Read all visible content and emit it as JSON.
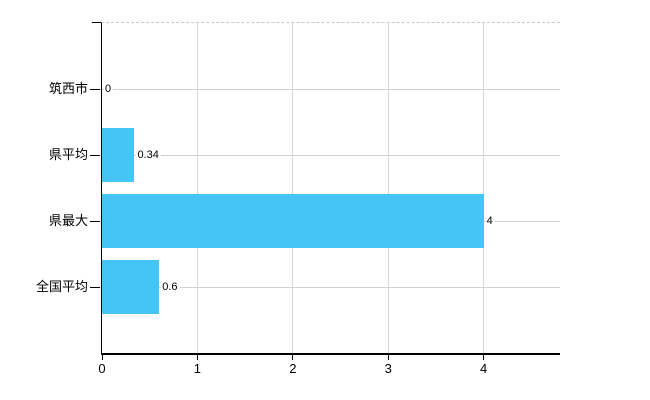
{
  "chart_data": {
    "type": "bar",
    "orientation": "horizontal",
    "categories": [
      "筑西市",
      "県平均",
      "県最大",
      "全国平均"
    ],
    "values": [
      0,
      0.34,
      4,
      0.6
    ],
    "value_labels": [
      "0",
      "0.34",
      "4",
      "0.6"
    ],
    "x_ticks": [
      0,
      1,
      2,
      3,
      4
    ],
    "x_tick_labels": [
      "0",
      "1",
      "2",
      "3",
      "4"
    ],
    "xlim": [
      0,
      4.8
    ],
    "grid": true,
    "legend": false,
    "bar_color": "#44C5F5"
  },
  "colors": {
    "bar": "#44C5F5",
    "horizontal_grid": "#ccd3ca",
    "vertical_grid": "#d7d7da",
    "axis": "#000000",
    "plot_top_border": "#c8c8c8",
    "background": "#ffffff",
    "text": "#000000"
  }
}
